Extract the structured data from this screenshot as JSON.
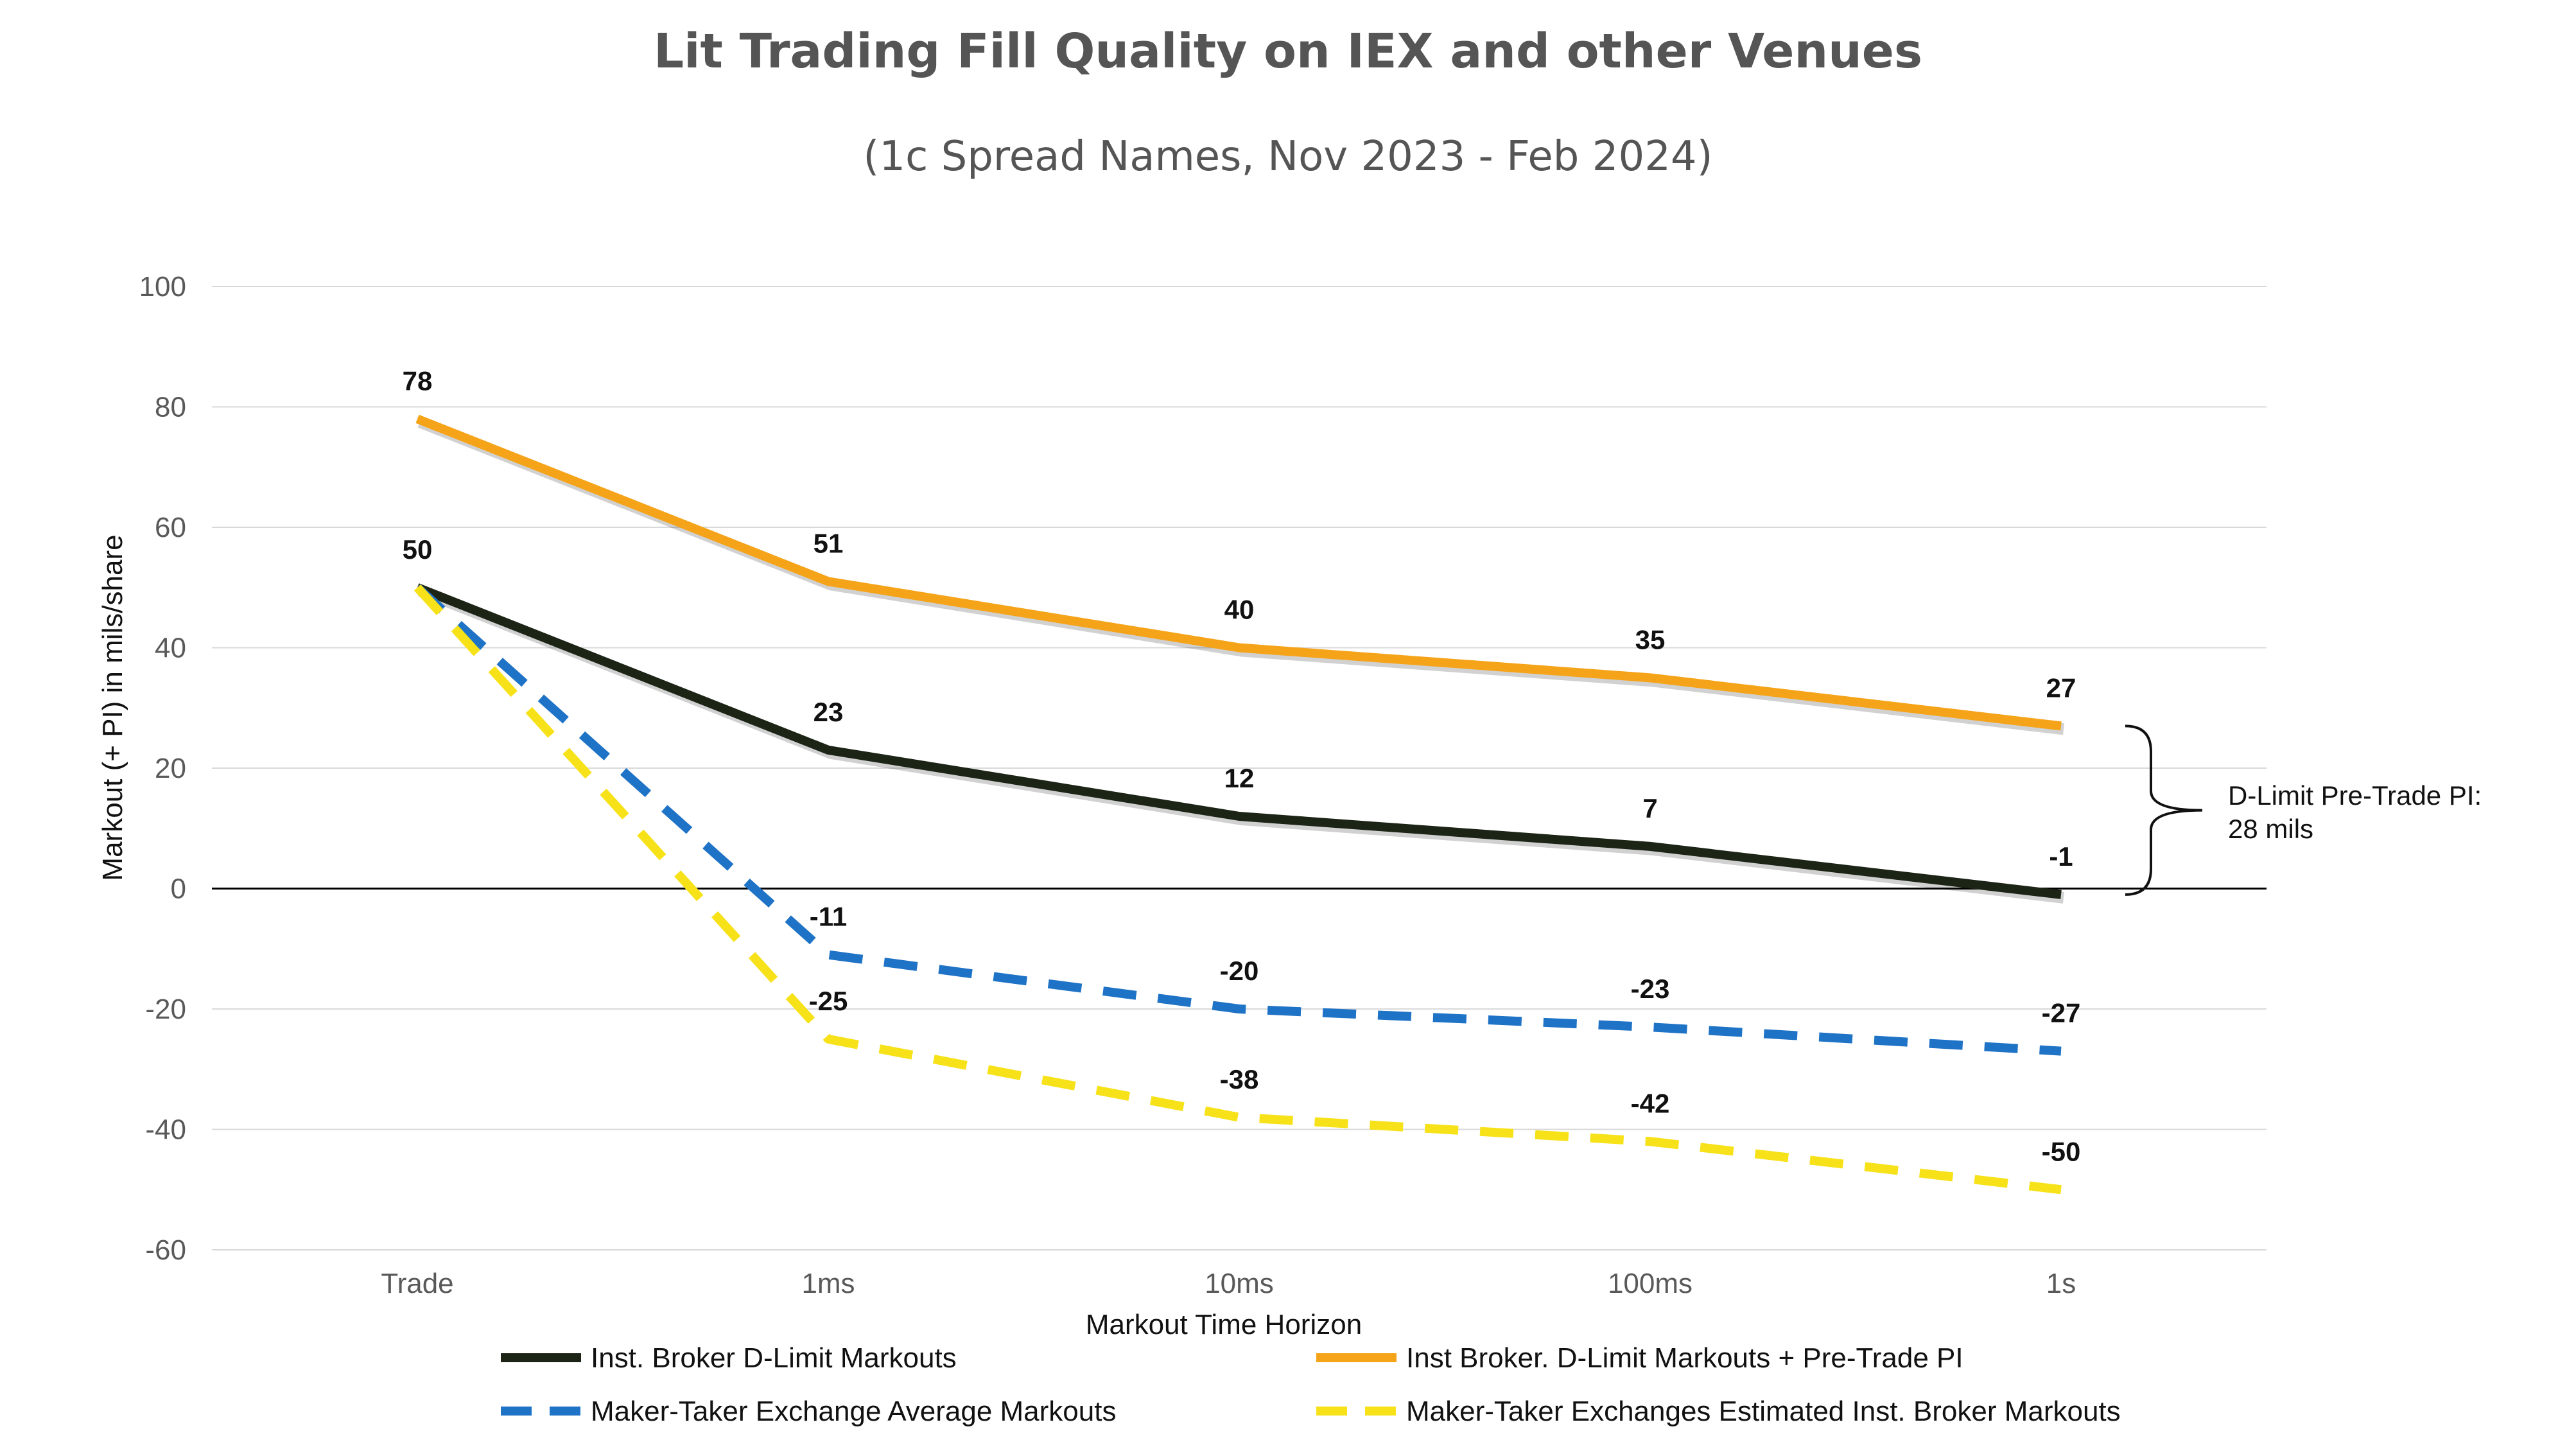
{
  "chart_data": {
    "type": "line",
    "title": "Lit Trading Fill Quality on IEX and other Venues",
    "subtitle": "(1c Spread Names, Nov 2023 - Feb 2024)",
    "xlabel": "Markout Time Horizon",
    "ylabel": "Markout (+ PI) in mils/share",
    "categories": [
      "Trade",
      "1ms",
      "10ms",
      "100ms",
      "1s"
    ],
    "ylim": [
      -60,
      100
    ],
    "yticks": [
      100,
      80,
      60,
      40,
      20,
      0,
      -20,
      -40,
      -60
    ],
    "grid": true,
    "legend_position": "bottom",
    "series": [
      {
        "name": "Inst. Broker D-Limit Markouts",
        "values": [
          50,
          23,
          12,
          7,
          -1
        ],
        "color": "#1c2416",
        "dash": "solid",
        "labels": [
          "50",
          "23",
          "12",
          "7",
          "-1"
        ]
      },
      {
        "name": "Inst Broker. D-Limit Markouts + Pre-Trade PI",
        "values": [
          78,
          51,
          40,
          35,
          27
        ],
        "color": "#f5a41a",
        "dash": "solid",
        "labels": [
          "78",
          "51",
          "40",
          "35",
          "27"
        ]
      },
      {
        "name": "Maker-Taker Exchange Average Markouts",
        "values": [
          50,
          -11,
          -20,
          -23,
          -27
        ],
        "color": "#1f73c6",
        "dash": "dashed",
        "labels": [
          "",
          "-11",
          "-20",
          "-23",
          "-27"
        ]
      },
      {
        "name": "Maker-Taker Exchanges Estimated Inst. Broker Markouts",
        "values": [
          50,
          -25,
          -38,
          -42,
          -50
        ],
        "color": "#f7e21a",
        "dash": "dashed",
        "labels": [
          "",
          "-25",
          "-38",
          "-42",
          "-50"
        ]
      }
    ],
    "annotation": {
      "text_line1": "D-Limit Pre-Trade PI:",
      "text_line2": "28 mils",
      "from_value": 27,
      "to_value": -1
    }
  }
}
